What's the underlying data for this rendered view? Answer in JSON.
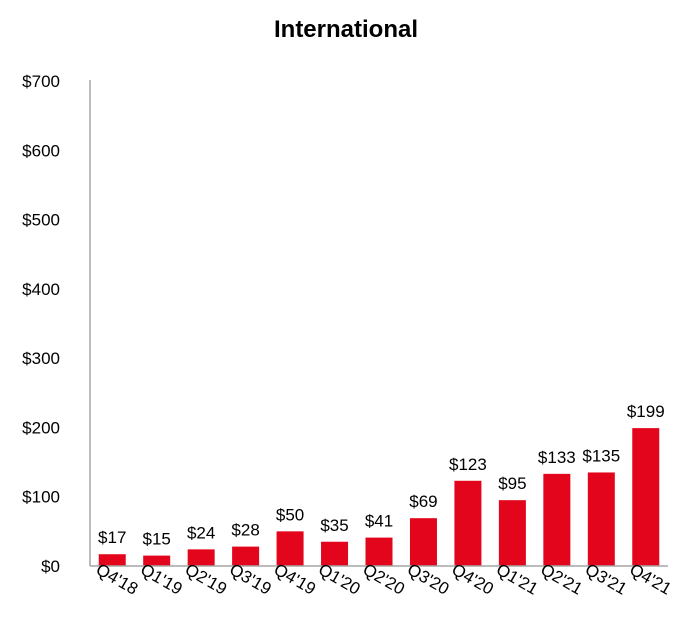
{
  "chart_data": {
    "type": "bar",
    "title": "International",
    "xlabel": "",
    "ylabel": "",
    "ylim": [
      0,
      700
    ],
    "yticks": [
      0,
      100,
      200,
      300,
      400,
      500,
      600,
      700
    ],
    "ytick_labels": [
      "$0",
      "$100",
      "$200",
      "$300",
      "$400",
      "$500",
      "$600",
      "$700"
    ],
    "categories": [
      "Q4'18",
      "Q1'19",
      "Q2'19",
      "Q3'19",
      "Q4'19",
      "Q1'20",
      "Q2'20",
      "Q3'20",
      "Q4'20",
      "Q1'21",
      "Q2'21",
      "Q3'21",
      "Q4'21"
    ],
    "values": [
      17,
      15,
      24,
      28,
      50,
      35,
      41,
      69,
      123,
      95,
      133,
      135,
      199
    ],
    "data_labels": [
      "$17",
      "$15",
      "$24",
      "$28",
      "$50",
      "$35",
      "$41",
      "$69",
      "$123",
      "$95",
      "$133",
      "$135",
      "$199"
    ],
    "bar_color": "#e3051b",
    "grid": false,
    "legend": "none"
  }
}
